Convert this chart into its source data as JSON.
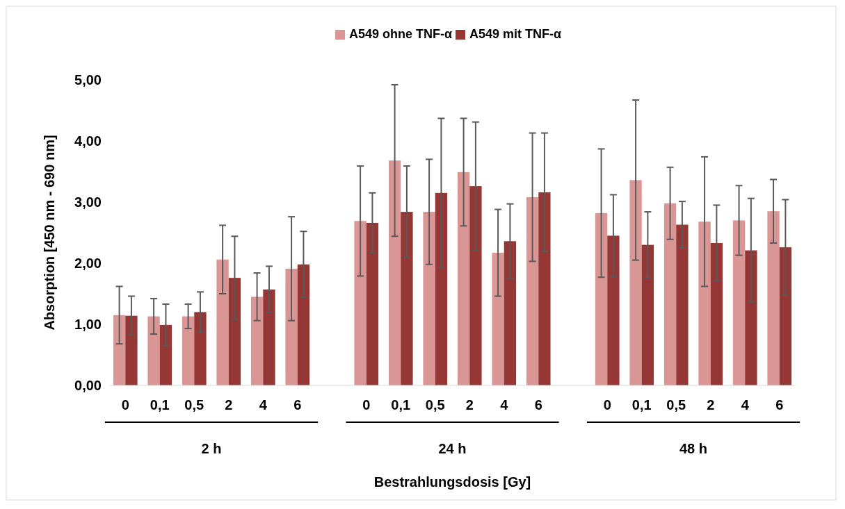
{
  "chart_data": {
    "type": "bar",
    "xlabel": "Bestrahlungsdosis [Gy]",
    "ylabel": "Absorption [450 nm - 690 nm]",
    "categories": [
      "0",
      "0,1",
      "0,5",
      "2",
      "4",
      "6",
      null,
      "0",
      "0,1",
      "0,5",
      "2",
      "4",
      "6",
      null,
      "0",
      "0,1",
      "0,5",
      "2",
      "4",
      "6"
    ],
    "series": [
      {
        "name": "A549 ohne TNF-α",
        "color": "#d99694",
        "values": [
          1.15,
          1.13,
          1.13,
          2.06,
          1.45,
          1.91,
          null,
          2.69,
          3.68,
          2.84,
          3.49,
          2.17,
          3.08,
          null,
          2.82,
          3.36,
          2.98,
          2.68,
          2.7,
          2.85
        ],
        "errors": [
          0.47,
          0.29,
          0.2,
          0.56,
          0.39,
          0.85,
          null,
          0.9,
          1.24,
          0.86,
          0.88,
          0.71,
          1.05,
          null,
          1.05,
          1.31,
          0.59,
          1.06,
          0.57,
          0.52
        ]
      },
      {
        "name": "A549 mit TNF-α",
        "color": "#953735",
        "values": [
          1.14,
          0.99,
          1.2,
          1.76,
          1.57,
          1.98,
          null,
          2.66,
          2.84,
          3.15,
          3.26,
          2.36,
          3.16,
          null,
          2.45,
          2.3,
          2.63,
          2.33,
          2.21,
          2.26
        ],
        "errors": [
          0.32,
          0.34,
          0.33,
          0.68,
          0.38,
          0.54,
          null,
          0.49,
          0.75,
          1.22,
          1.05,
          0.61,
          0.97,
          null,
          0.67,
          0.54,
          0.38,
          0.62,
          0.85,
          0.78
        ]
      }
    ],
    "ylim": [
      0,
      5
    ],
    "yticks": [
      {
        "value": 0,
        "label": "0,00"
      },
      {
        "value": 1,
        "label": "1,00"
      },
      {
        "value": 2,
        "label": "2,00"
      },
      {
        "value": 3,
        "label": "3,00"
      },
      {
        "value": 4,
        "label": "4,00"
      },
      {
        "value": 5,
        "label": "5,00"
      }
    ],
    "grid": false,
    "legend": "top",
    "annotations": [
      "2 h",
      "24 h",
      "48 h"
    ]
  }
}
